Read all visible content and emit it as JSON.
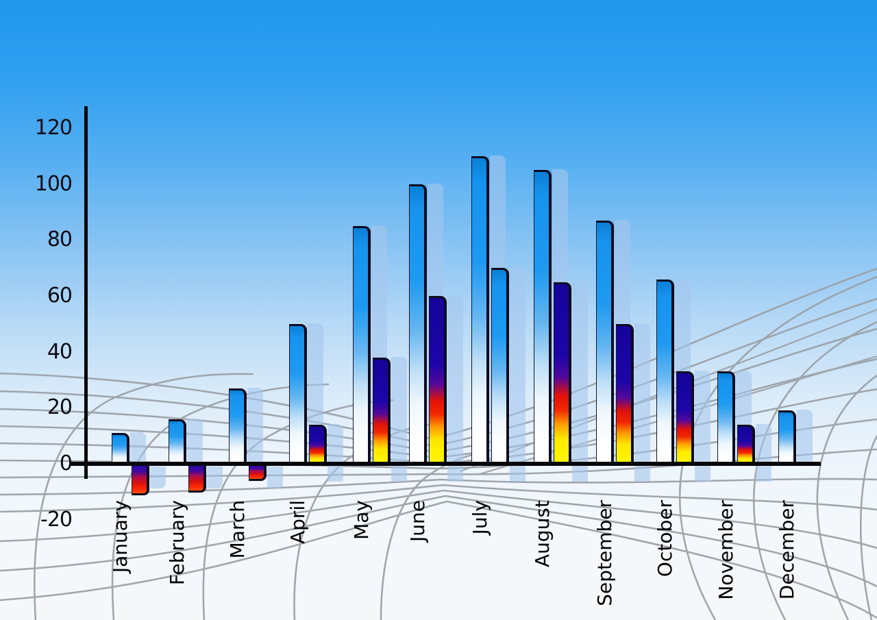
{
  "chart_data": {
    "type": "bar",
    "title": "",
    "categories": [
      "January",
      "February",
      "March",
      "April",
      "May",
      "June",
      "July",
      "August",
      "September",
      "October",
      "November",
      "December"
    ],
    "series": [
      {
        "name": "primary-blue-bars",
        "style": "blue-gloss",
        "values": [
          11,
          16,
          27,
          50,
          85,
          100,
          110,
          105,
          87,
          66,
          33,
          19
        ]
      },
      {
        "name": "secondary-flame-bars",
        "style": "flame-gradient",
        "values": [
          -10,
          -9,
          -5,
          14,
          38,
          60,
          70,
          65,
          50,
          33,
          14,
          null
        ],
        "bar_styles": [
          "negative",
          "negative",
          "negative",
          "flame",
          "flame",
          "flame",
          "blue",
          "flame",
          "flame",
          "flame",
          "flame",
          null
        ]
      }
    ],
    "ylim": [
      -20,
      120
    ],
    "yticks": [
      "120",
      "100",
      "80",
      "60",
      "40",
      "20",
      "0",
      "-20"
    ],
    "ytick_values": [
      120,
      100,
      80,
      60,
      40,
      20,
      0,
      -20
    ],
    "xlabel": "",
    "ylabel": "",
    "legend": "none",
    "grid": "decorative gray perspective mesh over sky-gradient background",
    "bar_shadow": "translucent light-blue echo bar offset right of every bar"
  },
  "colors": {
    "sky_top": "#2097ec",
    "sky_bottom": "#f5f7f9",
    "bar_blue_top": "#1693ee",
    "bar_flame_navy": "#1c05a8",
    "bar_flame_red": "#e31208",
    "bar_flame_yellow": "#fff800",
    "bar_negative_bottom": "#ff5500",
    "bar_outline": "#0c0c22",
    "echo_fill": "rgba(165,198,236,0.60)",
    "axis": "#070709",
    "mesh_line": "#9aa0a6",
    "tick_text": "#0b0b14",
    "label_text": "#000000"
  }
}
